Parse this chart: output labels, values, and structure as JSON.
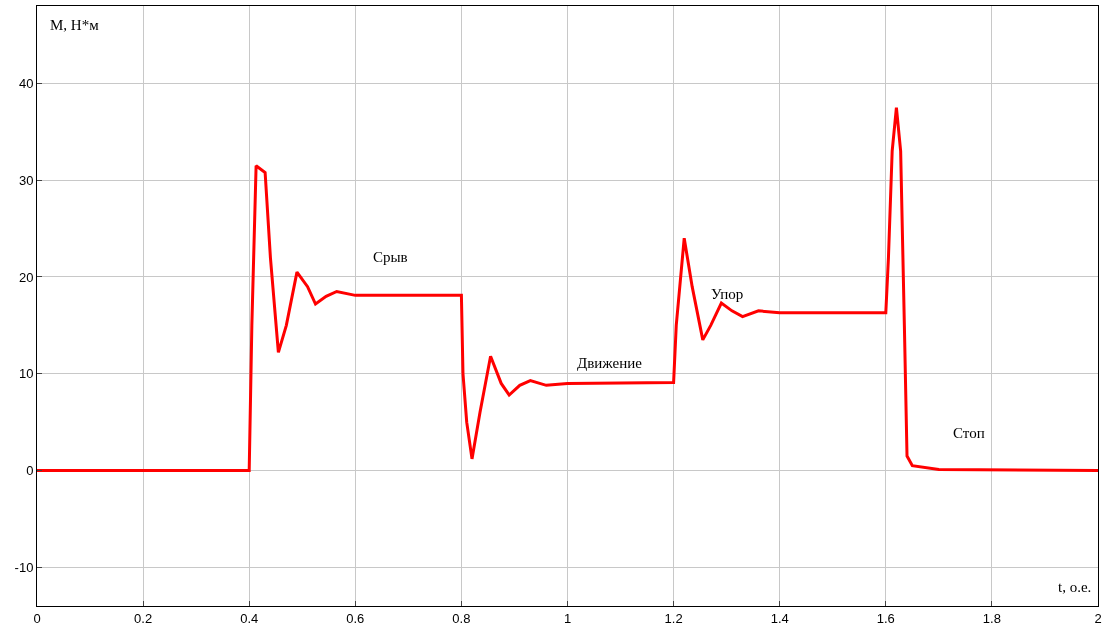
{
  "chart_data": {
    "type": "line",
    "xlabel": "t, о.е.",
    "ylabel": "M, Н*м",
    "x": [
      0,
      0.4,
      0.405,
      0.413,
      0.43,
      0.44,
      0.455,
      0.47,
      0.49,
      0.51,
      0.525,
      0.545,
      0.565,
      0.6,
      0.8,
      0.803,
      0.81,
      0.82,
      0.835,
      0.855,
      0.875,
      0.89,
      0.91,
      0.93,
      0.96,
      1.0,
      1.2,
      1.205,
      1.22,
      1.235,
      1.255,
      1.27,
      1.29,
      1.31,
      1.33,
      1.36,
      1.4,
      1.6,
      1.605,
      1.612,
      1.62,
      1.628,
      1.635,
      1.64,
      1.65,
      1.7,
      2.0
    ],
    "series": [
      {
        "color": "#ff0000",
        "values": [
          0,
          0,
          15,
          31.5,
          30.8,
          22,
          12.2,
          15,
          20.5,
          19,
          17.2,
          18,
          18.5,
          18.1,
          18.1,
          10,
          5,
          1.2,
          6,
          11.8,
          9,
          7.8,
          8.8,
          9.3,
          8.8,
          9,
          9.1,
          15,
          24,
          19,
          13.5,
          15,
          17.3,
          16.5,
          15.9,
          16.5,
          16.3,
          16.3,
          22,
          33,
          37.5,
          33,
          15,
          1.5,
          0.5,
          0.1,
          0
        ]
      }
    ],
    "xlim": [
      0,
      2
    ],
    "xticks": [
      0,
      0.2,
      0.4,
      0.6,
      0.8,
      1,
      1.2,
      1.4,
      1.6,
      1.8,
      2
    ],
    "ylim": [
      -14,
      48
    ],
    "yticks": [
      -10,
      0,
      10,
      20,
      30,
      40
    ],
    "grid": true,
    "marker": "none",
    "line_style": "solid",
    "annotations": [
      "Срыв",
      "Движение",
      "Упор",
      "Стоп"
    ]
  }
}
